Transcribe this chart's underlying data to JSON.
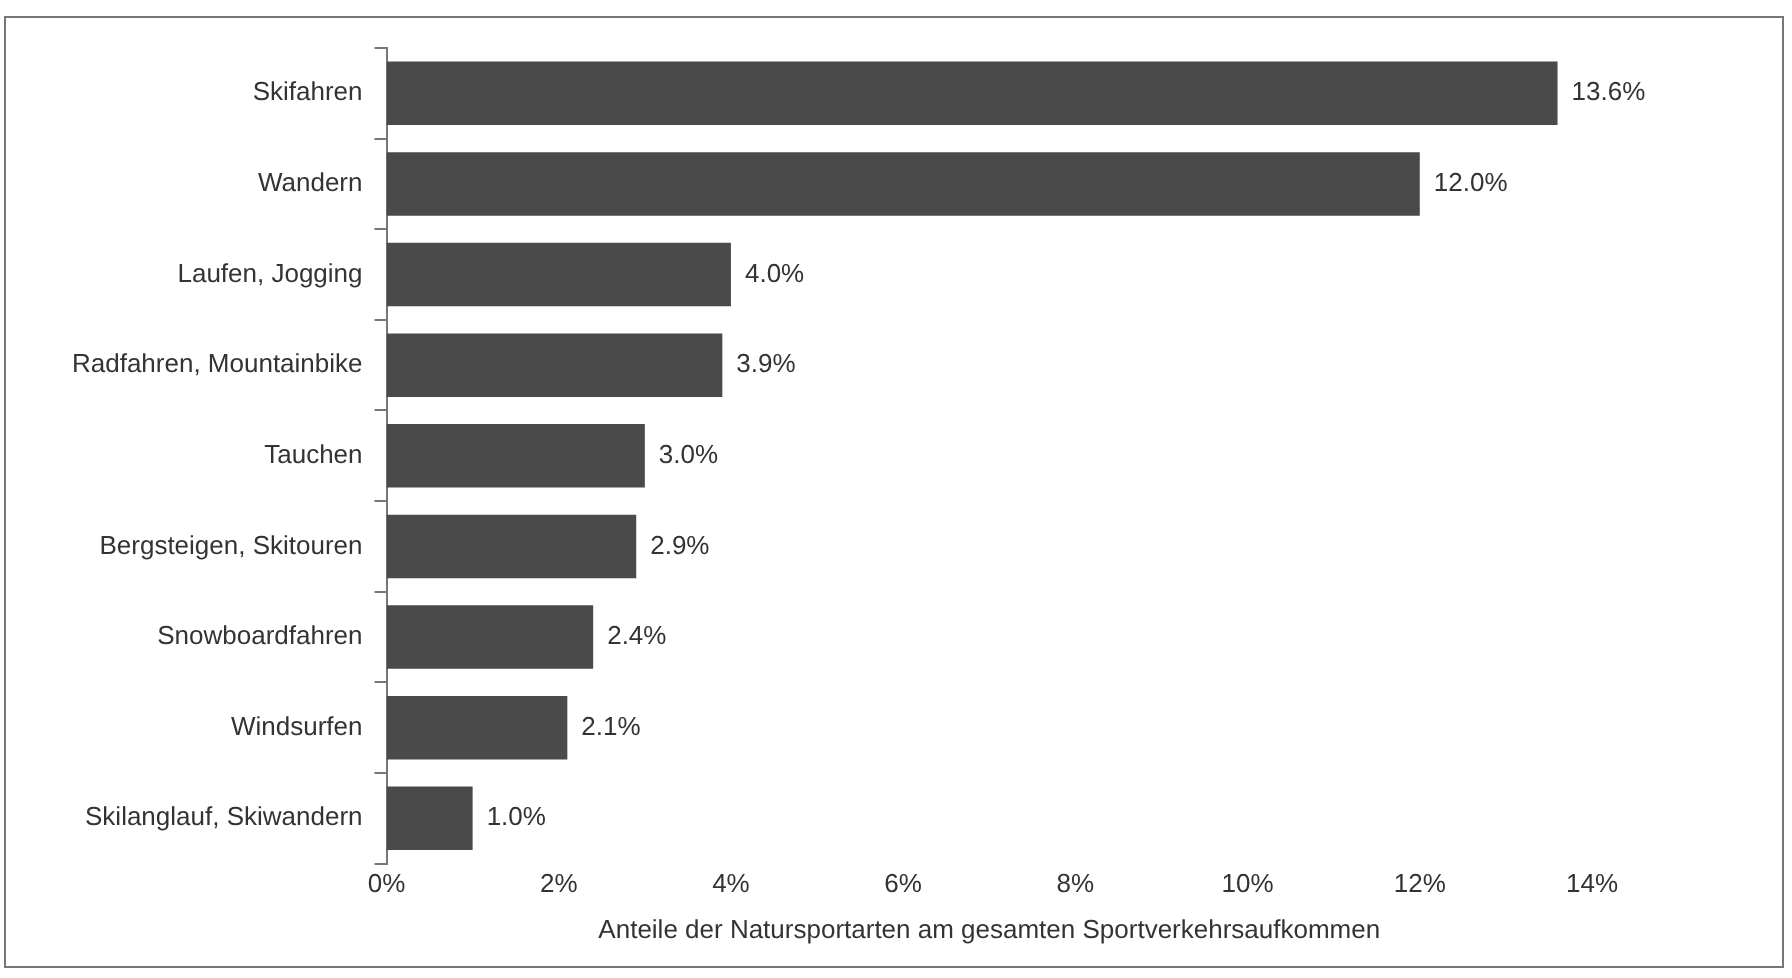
{
  "chart_data": {
    "type": "bar",
    "orientation": "horizontal",
    "categories": [
      "Skifahren",
      "Wandern",
      "Laufen, Jogging",
      "Radfahren, Mountainbike",
      "Tauchen",
      "Bergsteigen, Skitouren",
      "Snowboardfahren",
      "Windsurfen",
      "Skilanglauf, Skiwandern"
    ],
    "values": [
      13.6,
      12.0,
      4.0,
      3.9,
      3.0,
      2.9,
      2.4,
      2.1,
      1.0
    ],
    "value_labels": [
      "13.6%",
      "12.0%",
      "4.0%",
      "3.9%",
      "3.0%",
      "2.9%",
      "2.4%",
      "2.1%",
      "1.0%"
    ],
    "color": "#4a4a4a",
    "xlabel": "Anteile der Natursportarten am gesamten Sportverkehrsaufkommen",
    "xlim": [
      0,
      14
    ],
    "xticks": [
      {
        "value": 0,
        "label": "0%"
      },
      {
        "value": 2,
        "label": "2%"
      },
      {
        "value": 4,
        "label": "4%"
      },
      {
        "value": 6,
        "label": "6%"
      },
      {
        "value": 8,
        "label": "8%"
      },
      {
        "value": 10,
        "label": "10%"
      },
      {
        "value": 12,
        "label": "12%"
      },
      {
        "value": 14,
        "label": "14%"
      }
    ],
    "grid": false,
    "legend": false
  }
}
